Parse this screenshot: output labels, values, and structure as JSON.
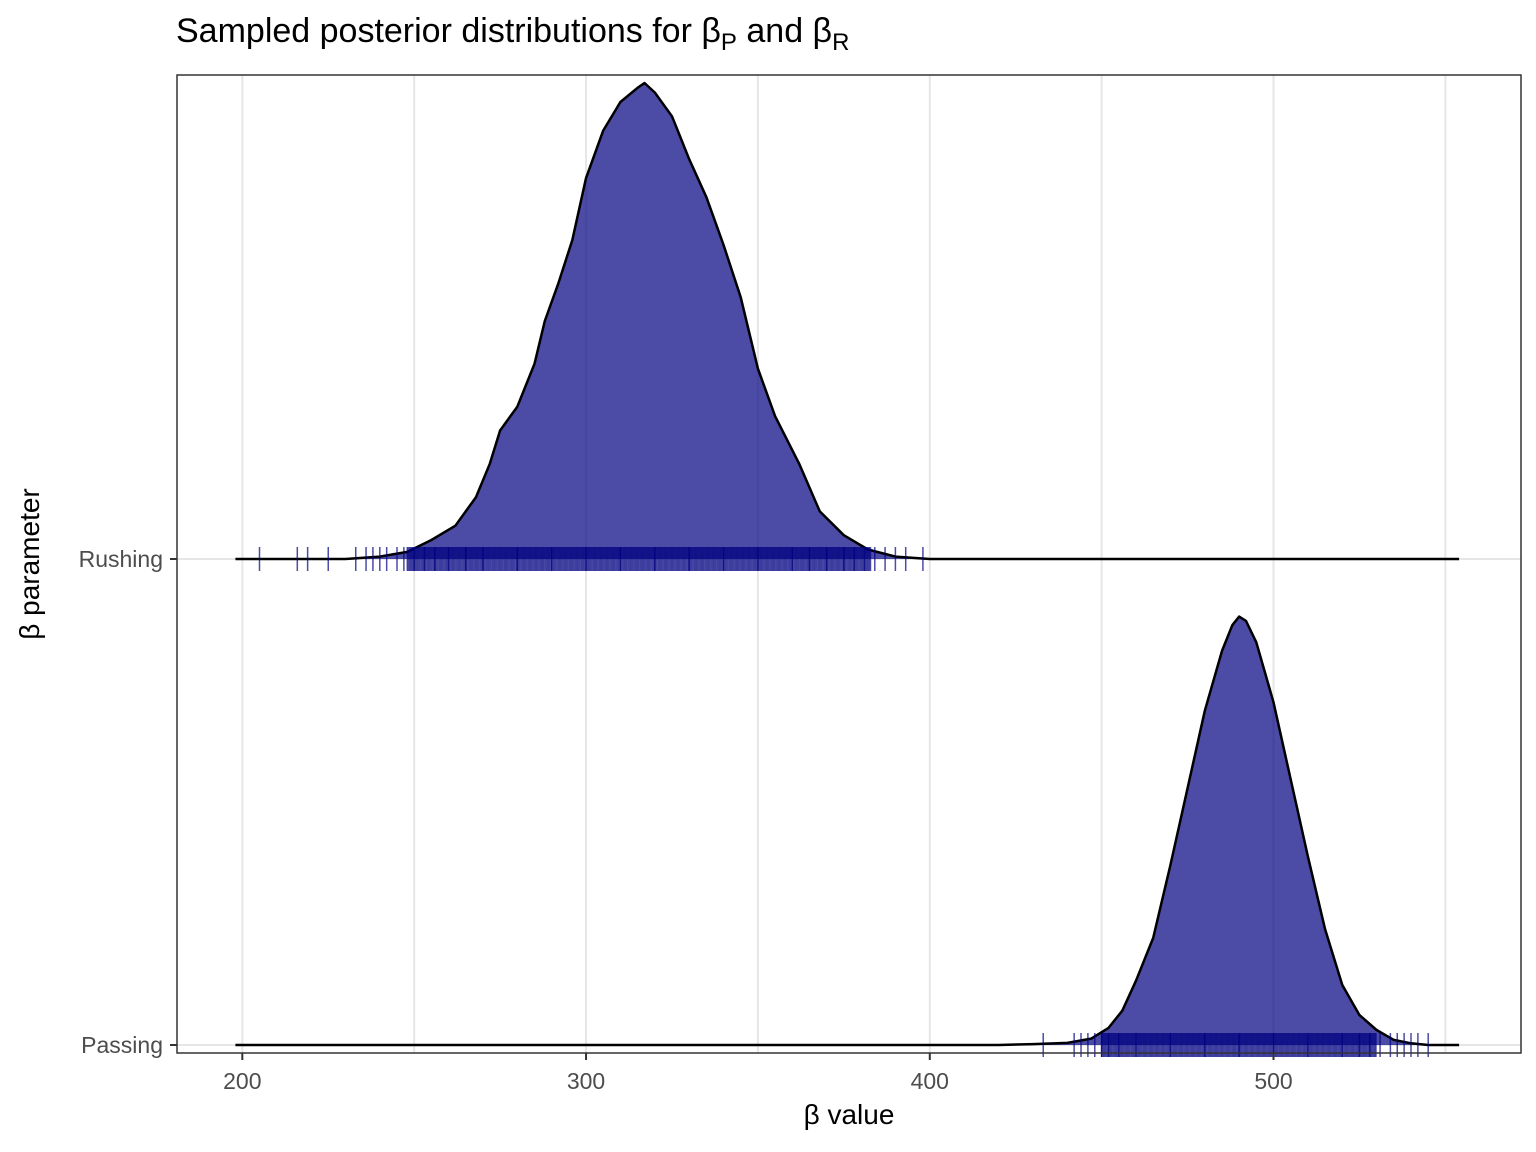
{
  "chart_data": {
    "type": "ridgeline-density",
    "title": {
      "text": "Sampled posterior distributions for β",
      "sub1": "P",
      "mid": " and β",
      "sub2": "R"
    },
    "xlabel": "β value",
    "ylabel": "β parameter",
    "xlim": [
      181,
      572
    ],
    "x_ticks": [
      200,
      300,
      400,
      500
    ],
    "x_minor_gridlines": [
      250,
      350,
      450,
      550
    ],
    "grid": true,
    "fill_color": "#000080",
    "fill_opacity": 0.7,
    "series": [
      {
        "name": "Rushing",
        "density_range": [
          198,
          554
        ],
        "peak_x": 317,
        "density_height_scale": 1.0,
        "density_curve": [
          [
            198,
            0
          ],
          [
            230,
            0.0
          ],
          [
            240,
            0.005
          ],
          [
            248,
            0.015
          ],
          [
            255,
            0.04
          ],
          [
            262,
            0.07
          ],
          [
            268,
            0.13
          ],
          [
            272,
            0.2
          ],
          [
            275,
            0.27
          ],
          [
            280,
            0.32
          ],
          [
            285,
            0.41
          ],
          [
            288,
            0.5
          ],
          [
            292,
            0.58
          ],
          [
            296,
            0.67
          ],
          [
            300,
            0.8
          ],
          [
            305,
            0.9
          ],
          [
            310,
            0.96
          ],
          [
            315,
            0.99
          ],
          [
            317,
            1.0
          ],
          [
            320,
            0.98
          ],
          [
            325,
            0.93
          ],
          [
            330,
            0.84
          ],
          [
            335,
            0.76
          ],
          [
            340,
            0.66
          ],
          [
            345,
            0.55
          ],
          [
            350,
            0.4
          ],
          [
            355,
            0.3
          ],
          [
            362,
            0.2
          ],
          [
            368,
            0.1
          ],
          [
            375,
            0.05
          ],
          [
            382,
            0.02
          ],
          [
            390,
            0.005
          ],
          [
            400,
            0.0
          ],
          [
            554,
            0
          ]
        ],
        "rug": [
          205,
          216,
          219,
          225,
          233,
          236,
          238,
          240,
          242,
          245,
          247,
          250,
          253,
          256,
          260,
          265,
          270,
          280,
          290,
          300,
          310,
          320,
          330,
          340,
          350,
          360,
          365,
          370,
          375,
          378,
          381,
          384,
          387,
          390,
          393,
          398
        ]
      },
      {
        "name": "Passing",
        "density_range": [
          198,
          554
        ],
        "peak_x": 490,
        "density_height_scale": 0.9,
        "density_curve": [
          [
            198,
            0
          ],
          [
            420,
            0.0
          ],
          [
            430,
            0.002
          ],
          [
            440,
            0.005
          ],
          [
            447,
            0.015
          ],
          [
            452,
            0.04
          ],
          [
            456,
            0.08
          ],
          [
            460,
            0.15
          ],
          [
            465,
            0.25
          ],
          [
            470,
            0.42
          ],
          [
            475,
            0.6
          ],
          [
            480,
            0.78
          ],
          [
            485,
            0.92
          ],
          [
            488,
            0.98
          ],
          [
            490,
            1.0
          ],
          [
            492,
            0.99
          ],
          [
            495,
            0.94
          ],
          [
            500,
            0.8
          ],
          [
            505,
            0.62
          ],
          [
            510,
            0.44
          ],
          [
            515,
            0.27
          ],
          [
            520,
            0.14
          ],
          [
            525,
            0.07
          ],
          [
            530,
            0.035
          ],
          [
            535,
            0.012
          ],
          [
            540,
            0.004
          ],
          [
            545,
            0.0
          ],
          [
            554,
            0
          ]
        ],
        "rug": [
          433,
          442,
          444,
          446,
          448,
          450,
          452,
          455,
          460,
          470,
          480,
          490,
          500,
          510,
          520,
          525,
          528,
          531,
          534,
          536,
          538,
          540,
          542,
          545
        ]
      }
    ]
  }
}
